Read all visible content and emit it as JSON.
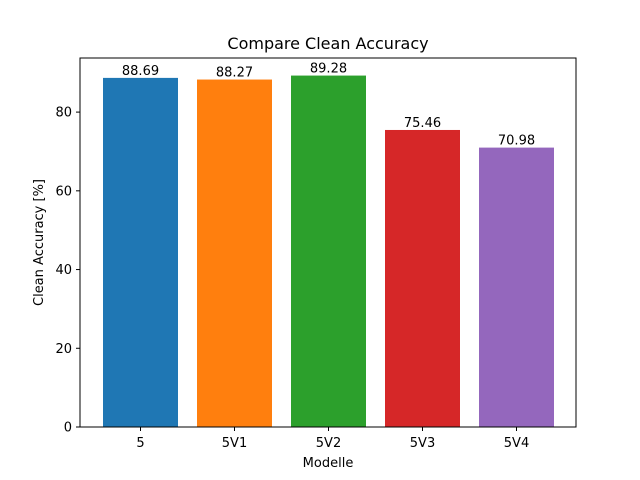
{
  "chart_data": {
    "type": "bar",
    "title": "Compare Clean Accuracy",
    "xlabel": "Modelle",
    "ylabel": "Clean Accuracy [%]",
    "categories": [
      "5",
      "5V1",
      "5V2",
      "5V3",
      "5V4"
    ],
    "values": [
      88.69,
      88.27,
      89.28,
      75.46,
      70.98
    ],
    "value_labels": [
      "88.69",
      "88.27",
      "89.28",
      "75.46",
      "70.98"
    ],
    "colors": [
      "#1f77b4",
      "#ff7f0e",
      "#2ca02c",
      "#d62728",
      "#9467bd"
    ],
    "ylim": [
      0,
      93.744
    ],
    "yticks": [
      0,
      20,
      40,
      60,
      80
    ],
    "ytick_labels": [
      "0",
      "20",
      "40",
      "60",
      "80"
    ],
    "grid": false,
    "legend": "none"
  }
}
